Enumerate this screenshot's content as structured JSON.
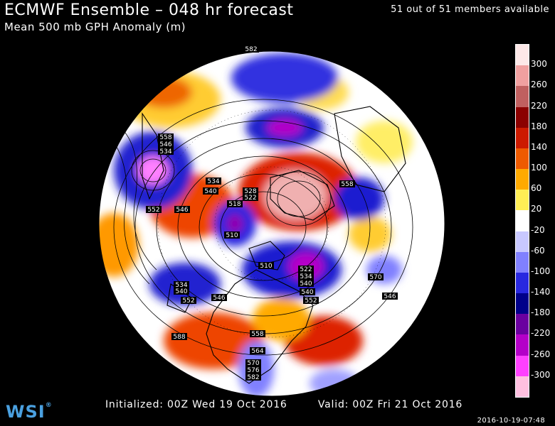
{
  "header": {
    "title": "ECMWF Ensemble – 048 hr forecast",
    "subtitle": "Mean 500 mb GPH Anomaly (m)",
    "members": "51 out of 51 members available"
  },
  "legend": {
    "labels": [
      "300",
      "260",
      "220",
      "180",
      "140",
      "100",
      "60",
      "20",
      "-20",
      "-60",
      "-100",
      "-140",
      "-180",
      "-220",
      "-260",
      "-300"
    ],
    "colors": [
      "#fde8e8",
      "#f0a0a0",
      "#c06060",
      "#8b0000",
      "#cc1a00",
      "#ee5a00",
      "#ffaa00",
      "#ffee55",
      "#ffffff",
      "#c8c8ff",
      "#8080ff",
      "#2828e0",
      "#00008a",
      "#6a00a0",
      "#b400c8",
      "#ff40ff",
      "#ffc0e0"
    ]
  },
  "contour_labels": [
    "582",
    "558",
    "546",
    "534",
    "534",
    "540",
    "528",
    "522",
    "518",
    "510",
    "552",
    "546",
    "558",
    "570",
    "510",
    "546",
    "540",
    "534",
    "522",
    "540",
    "546",
    "552",
    "552",
    "558",
    "564",
    "570",
    "576",
    "582",
    "588",
    "534",
    "540"
  ],
  "footer": {
    "initialized": "Initialized: 00Z Wed 19 Oct 2016",
    "valid": "Valid: 00Z Fri 21 Oct 2016",
    "timestamp": "2016-10-19-07:48"
  },
  "logo": {
    "text": "WSI",
    "mark": "®"
  }
}
